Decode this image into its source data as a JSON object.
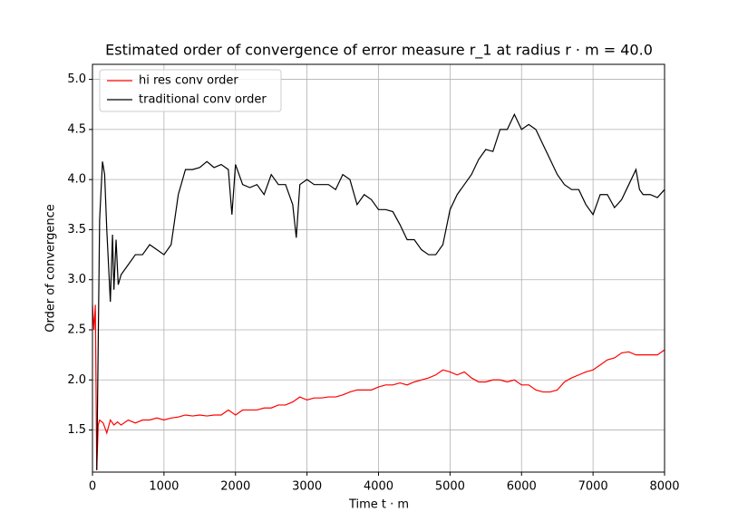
{
  "chart_data": {
    "type": "line",
    "title": "Estimated order of convergence of error measure r_1 at radius r · m = 40.0",
    "x_label": "Time t · m",
    "y_label": "Order of convergence",
    "xlim": [
      0,
      8000
    ],
    "ylim": [
      1.08,
      5.15
    ],
    "xticks": [
      0,
      1000,
      2000,
      3000,
      4000,
      5000,
      6000,
      7000,
      8000
    ],
    "yticks": [
      1.5,
      {
        "value": 2,
        "label": "2.0"
      },
      2.5,
      {
        "value": 3,
        "label": "3.0"
      },
      3.5,
      {
        "value": 4,
        "label": "4.0"
      },
      4.5,
      {
        "value": 5,
        "label": "5.0"
      }
    ],
    "grid": true,
    "legend": "upper left",
    "series": [
      {
        "name": "hi res conv order",
        "color": "#ff0000",
        "x": [
          0,
          20,
          40,
          60,
          80,
          100,
          150,
          200,
          250,
          300,
          350,
          400,
          500,
          600,
          700,
          800,
          900,
          1000,
          1100,
          1200,
          1300,
          1400,
          1500,
          1600,
          1700,
          1800,
          1900,
          2000,
          2100,
          2200,
          2300,
          2400,
          2500,
          2600,
          2700,
          2800,
          2900,
          3000,
          3100,
          3200,
          3300,
          3400,
          3500,
          3600,
          3700,
          3800,
          3900,
          4000,
          4100,
          4200,
          4300,
          4400,
          4500,
          4600,
          4700,
          4800,
          4900,
          5000,
          5100,
          5200,
          5300,
          5400,
          5500,
          5600,
          5700,
          5800,
          5900,
          6000,
          6100,
          6200,
          6300,
          6400,
          6500,
          6600,
          6700,
          6800,
          6900,
          7000,
          7100,
          7200,
          7300,
          7400,
          7500,
          7600,
          7700,
          7800,
          7900,
          8000
        ],
        "values": [
          2.75,
          2.5,
          2.75,
          1.1,
          1.55,
          1.6,
          1.57,
          1.47,
          1.6,
          1.55,
          1.58,
          1.55,
          1.6,
          1.57,
          1.6,
          1.6,
          1.62,
          1.6,
          1.62,
          1.63,
          1.65,
          1.64,
          1.65,
          1.64,
          1.65,
          1.65,
          1.7,
          1.65,
          1.7,
          1.7,
          1.7,
          1.72,
          1.72,
          1.75,
          1.75,
          1.78,
          1.83,
          1.8,
          1.82,
          1.82,
          1.83,
          1.83,
          1.85,
          1.88,
          1.9,
          1.9,
          1.9,
          1.93,
          1.95,
          1.95,
          1.97,
          1.95,
          1.98,
          2.0,
          2.02,
          2.05,
          2.1,
          2.08,
          2.05,
          2.08,
          2.02,
          1.98,
          1.98,
          2.0,
          2.0,
          1.98,
          2.0,
          1.95,
          1.95,
          1.9,
          1.88,
          1.88,
          1.9,
          1.98,
          2.02,
          2.05,
          2.08,
          2.1,
          2.15,
          2.2,
          2.22,
          2.27,
          2.28,
          2.25,
          2.25,
          2.25,
          2.25,
          2.3
        ]
      },
      {
        "name": "traditional conv order",
        "color": "#000000",
        "x": [
          60,
          100,
          140,
          170,
          200,
          250,
          280,
          300,
          330,
          360,
          400,
          500,
          600,
          700,
          800,
          900,
          1000,
          1100,
          1200,
          1300,
          1400,
          1500,
          1600,
          1700,
          1800,
          1900,
          1950,
          2000,
          2100,
          2200,
          2300,
          2400,
          2500,
          2600,
          2700,
          2800,
          2850,
          2900,
          3000,
          3100,
          3200,
          3300,
          3400,
          3500,
          3600,
          3700,
          3800,
          3900,
          4000,
          4100,
          4200,
          4300,
          4400,
          4500,
          4600,
          4700,
          4800,
          4900,
          5000,
          5100,
          5200,
          5300,
          5400,
          5500,
          5600,
          5700,
          5800,
          5900,
          6000,
          6100,
          6200,
          6300,
          6400,
          6500,
          6600,
          6700,
          6800,
          6900,
          7000,
          7100,
          7200,
          7300,
          7400,
          7500,
          7600,
          7650,
          7700,
          7800,
          7900,
          8000
        ],
        "values": [
          1.1,
          3.6,
          4.18,
          4.05,
          3.5,
          2.78,
          3.45,
          2.9,
          3.4,
          2.95,
          3.05,
          3.15,
          3.25,
          3.25,
          3.35,
          3.3,
          3.25,
          3.35,
          3.85,
          4.1,
          4.1,
          4.12,
          4.18,
          4.12,
          4.15,
          4.1,
          3.65,
          4.15,
          3.95,
          3.92,
          3.95,
          3.85,
          4.05,
          3.95,
          3.95,
          3.75,
          3.42,
          3.95,
          4.0,
          3.95,
          3.95,
          3.95,
          3.9,
          4.05,
          4.0,
          3.75,
          3.85,
          3.8,
          3.7,
          3.7,
          3.68,
          3.55,
          3.4,
          3.4,
          3.3,
          3.25,
          3.25,
          3.35,
          3.7,
          3.85,
          3.95,
          4.05,
          4.2,
          4.3,
          4.28,
          4.5,
          4.5,
          4.65,
          4.5,
          4.55,
          4.5,
          4.35,
          4.2,
          4.05,
          3.95,
          3.9,
          3.9,
          3.75,
          3.65,
          3.85,
          3.85,
          3.72,
          3.8,
          3.95,
          4.1,
          3.9,
          3.85,
          3.85,
          3.82,
          3.9
        ]
      }
    ]
  }
}
